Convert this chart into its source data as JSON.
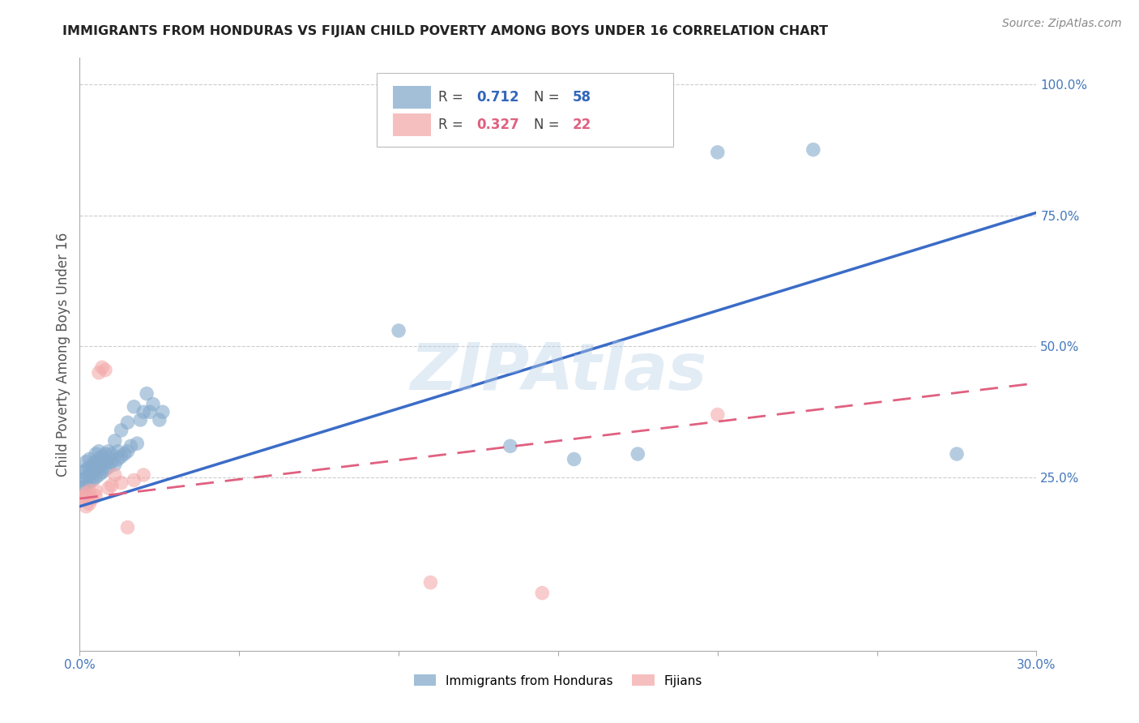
{
  "title": "IMMIGRANTS FROM HONDURAS VS FIJIAN CHILD POVERTY AMONG BOYS UNDER 16 CORRELATION CHART",
  "source": "Source: ZipAtlas.com",
  "ylabel": "Child Poverty Among Boys Under 16",
  "xlim": [
    0.0,
    0.3
  ],
  "ylim": [
    0.0,
    1.05
  ],
  "yticks": [
    0.0,
    0.25,
    0.5,
    0.75,
    1.0
  ],
  "ytick_labels": [
    "",
    "25.0%",
    "50.0%",
    "75.0%",
    "100.0%"
  ],
  "xticks": [
    0.0,
    0.05,
    0.1,
    0.15,
    0.2,
    0.25,
    0.3
  ],
  "xtick_labels": [
    "0.0%",
    "",
    "",
    "",
    "",
    "",
    "30.0%"
  ],
  "legend_label1": "Immigrants from Honduras",
  "legend_label2": "Fijians",
  "blue_color": "#85AACC",
  "pink_color": "#F4AAAA",
  "trend_blue": "#3B6CC7",
  "trend_pink": "#E06080",
  "axis_label_color": "#4477BB",
  "watermark": "ZIPAtlas",
  "blue_scatter": [
    [
      0.001,
      0.23
    ],
    [
      0.001,
      0.245
    ],
    [
      0.001,
      0.26
    ],
    [
      0.002,
      0.235
    ],
    [
      0.002,
      0.25
    ],
    [
      0.002,
      0.265
    ],
    [
      0.002,
      0.28
    ],
    [
      0.003,
      0.24
    ],
    [
      0.003,
      0.255
    ],
    [
      0.003,
      0.27
    ],
    [
      0.003,
      0.285
    ],
    [
      0.004,
      0.245
    ],
    [
      0.004,
      0.26
    ],
    [
      0.004,
      0.275
    ],
    [
      0.005,
      0.25
    ],
    [
      0.005,
      0.265
    ],
    [
      0.005,
      0.28
    ],
    [
      0.005,
      0.295
    ],
    [
      0.006,
      0.255
    ],
    [
      0.006,
      0.27
    ],
    [
      0.006,
      0.285
    ],
    [
      0.006,
      0.3
    ],
    [
      0.007,
      0.26
    ],
    [
      0.007,
      0.275
    ],
    [
      0.007,
      0.29
    ],
    [
      0.008,
      0.265
    ],
    [
      0.008,
      0.28
    ],
    [
      0.008,
      0.295
    ],
    [
      0.009,
      0.27
    ],
    [
      0.009,
      0.285
    ],
    [
      0.009,
      0.3
    ],
    [
      0.01,
      0.28
    ],
    [
      0.01,
      0.295
    ],
    [
      0.011,
      0.275
    ],
    [
      0.011,
      0.32
    ],
    [
      0.012,
      0.285
    ],
    [
      0.012,
      0.3
    ],
    [
      0.013,
      0.29
    ],
    [
      0.013,
      0.34
    ],
    [
      0.014,
      0.295
    ],
    [
      0.015,
      0.3
    ],
    [
      0.015,
      0.355
    ],
    [
      0.016,
      0.31
    ],
    [
      0.017,
      0.385
    ],
    [
      0.018,
      0.315
    ],
    [
      0.019,
      0.36
    ],
    [
      0.02,
      0.375
    ],
    [
      0.021,
      0.41
    ],
    [
      0.022,
      0.375
    ],
    [
      0.023,
      0.39
    ],
    [
      0.025,
      0.36
    ],
    [
      0.026,
      0.375
    ],
    [
      0.1,
      0.53
    ],
    [
      0.135,
      0.31
    ],
    [
      0.155,
      0.285
    ],
    [
      0.175,
      0.295
    ],
    [
      0.2,
      0.87
    ],
    [
      0.23,
      0.875
    ],
    [
      0.275,
      0.295
    ]
  ],
  "pink_scatter": [
    [
      0.001,
      0.21
    ],
    [
      0.001,
      0.215
    ],
    [
      0.002,
      0.195
    ],
    [
      0.002,
      0.22
    ],
    [
      0.003,
      0.2
    ],
    [
      0.003,
      0.225
    ],
    [
      0.004,
      0.21
    ],
    [
      0.005,
      0.215
    ],
    [
      0.005,
      0.225
    ],
    [
      0.006,
      0.45
    ],
    [
      0.007,
      0.46
    ],
    [
      0.008,
      0.455
    ],
    [
      0.009,
      0.23
    ],
    [
      0.01,
      0.235
    ],
    [
      0.011,
      0.255
    ],
    [
      0.013,
      0.24
    ],
    [
      0.015,
      0.155
    ],
    [
      0.017,
      0.245
    ],
    [
      0.02,
      0.255
    ],
    [
      0.2,
      0.37
    ],
    [
      0.11,
      0.05
    ],
    [
      0.145,
      0.03
    ]
  ],
  "blue_line_x": [
    0.0,
    0.3
  ],
  "blue_line_y": [
    0.195,
    0.755
  ],
  "pink_line_x": [
    0.0,
    0.3
  ],
  "pink_line_y": [
    0.21,
    0.43
  ]
}
